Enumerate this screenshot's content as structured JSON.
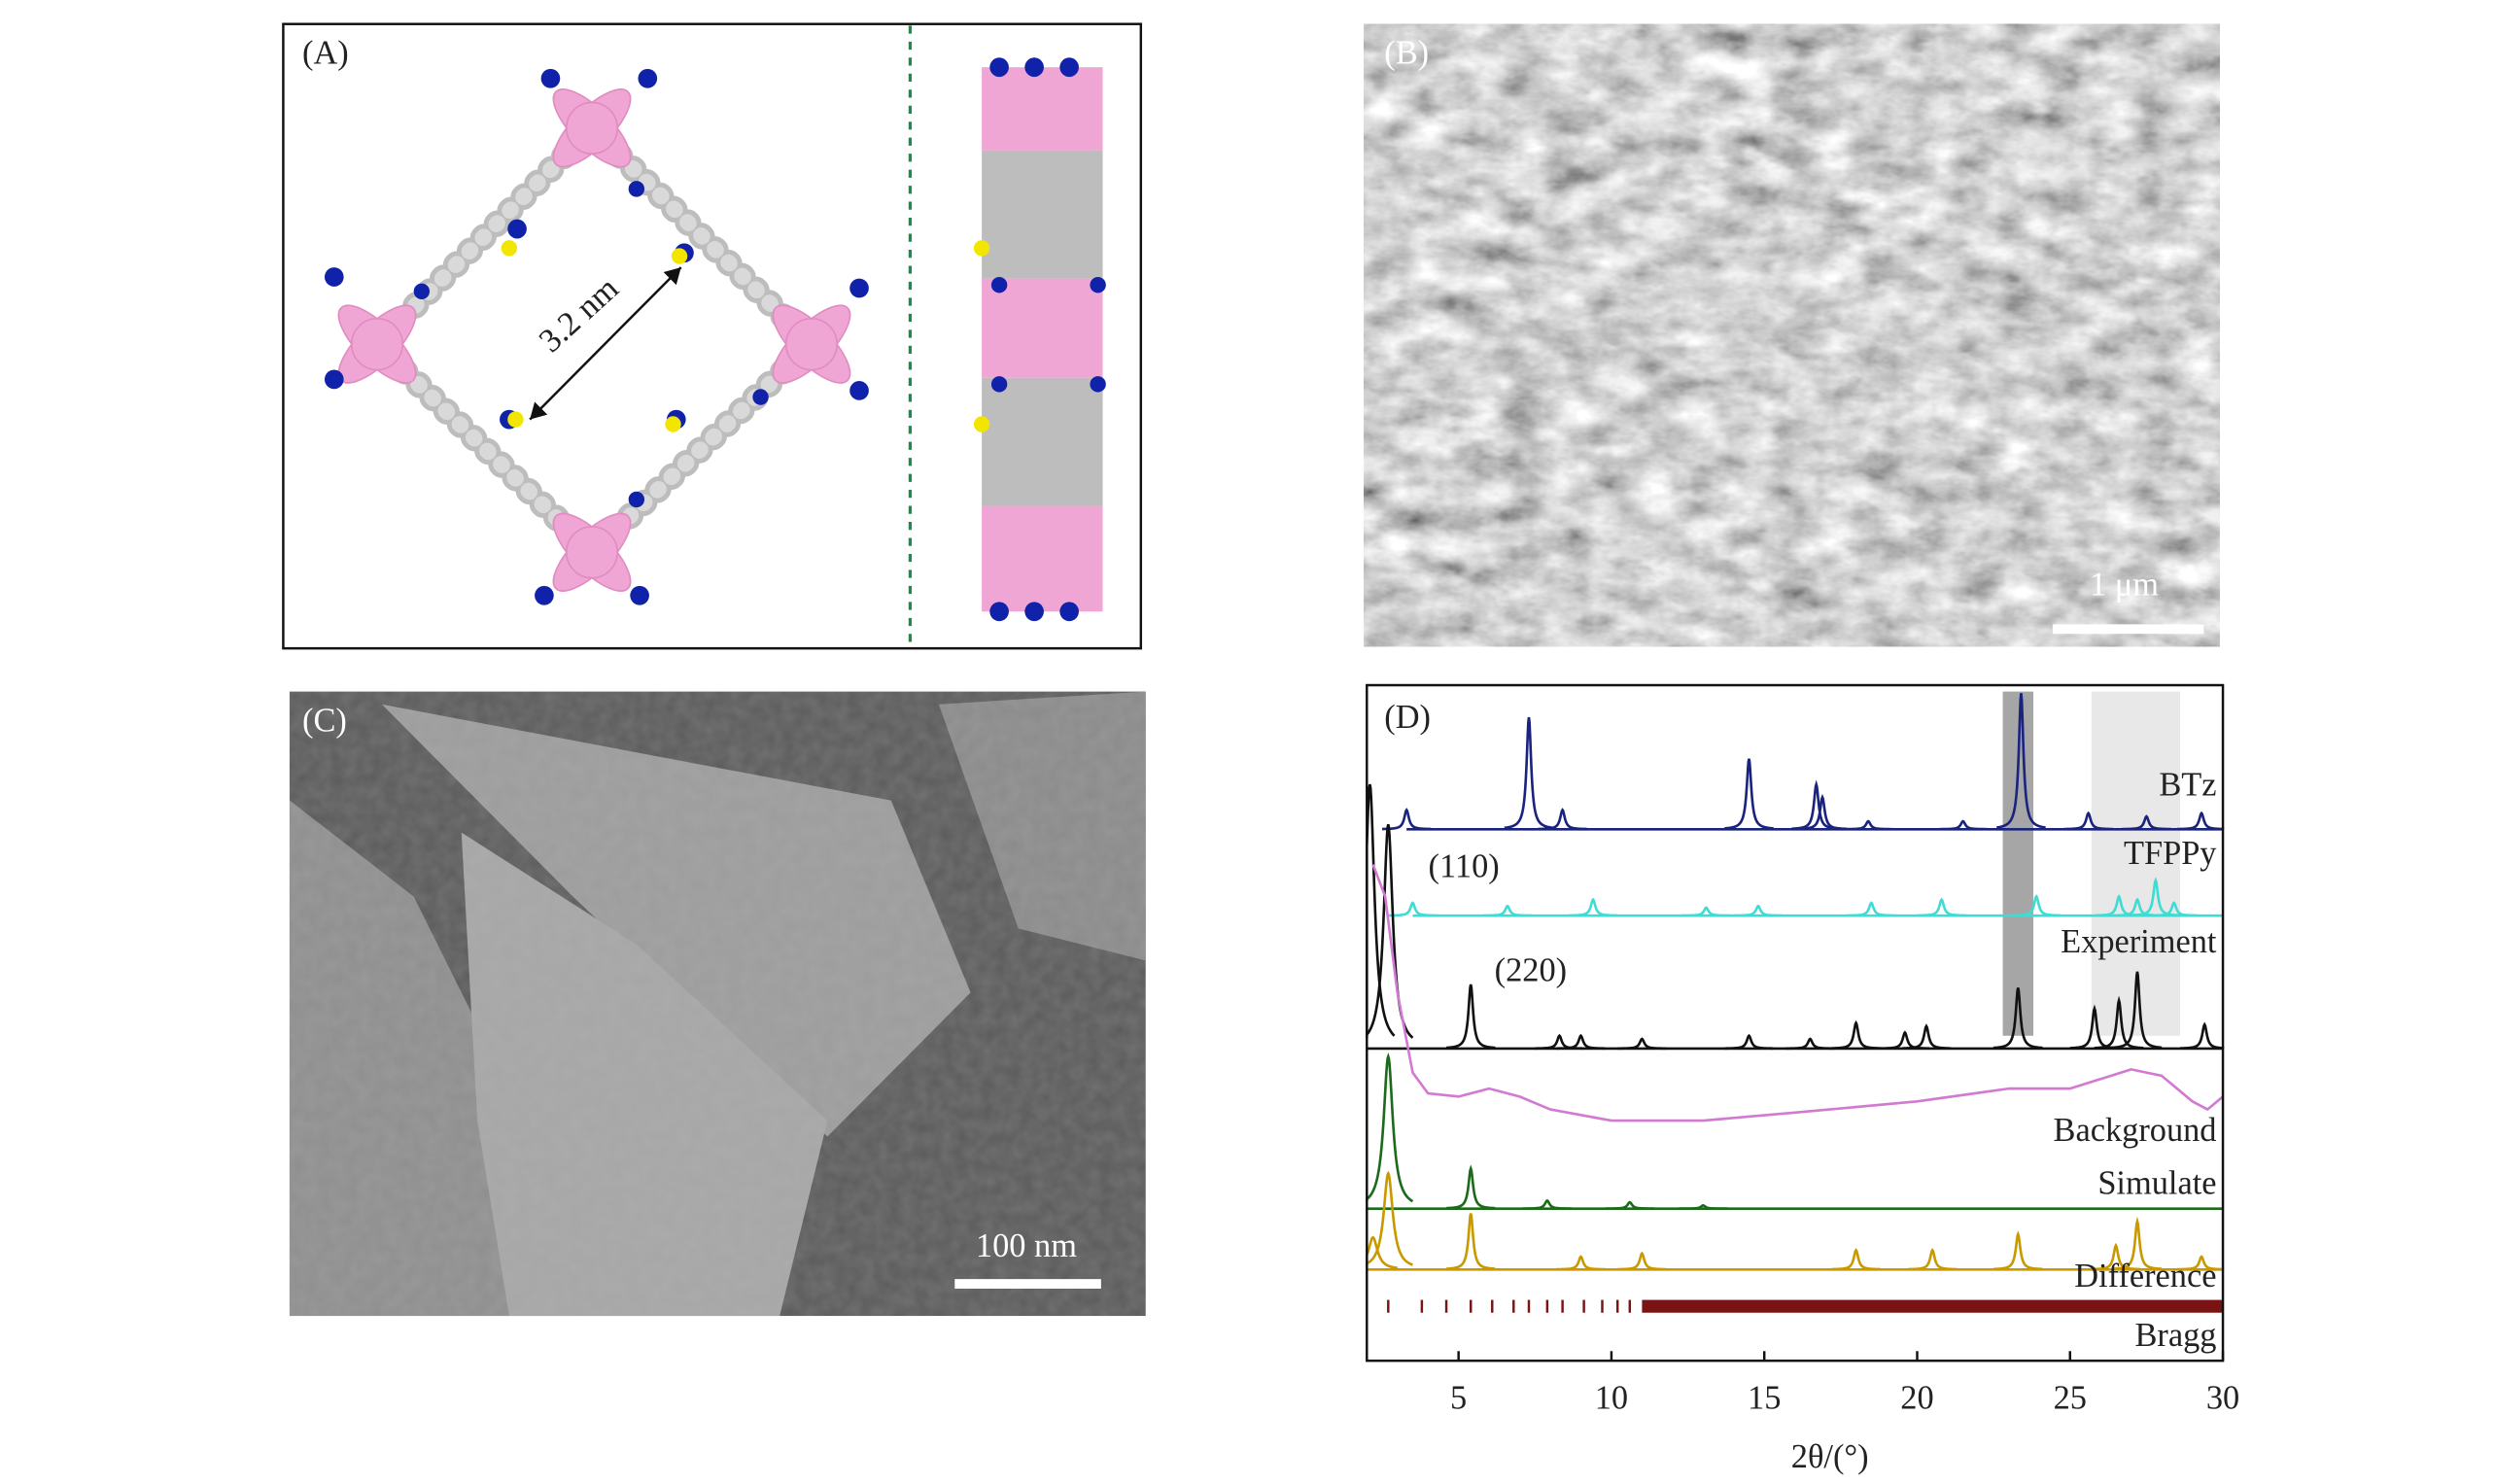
{
  "panels": {
    "a": {
      "label": "(A)",
      "distance": "3.2 nm"
    },
    "b": {
      "label": "(B)",
      "scale_bar": "1 μm"
    },
    "c": {
      "label": "(C)",
      "scale_bar": "100 nm"
    }
  },
  "chart_data": {
    "type": "xrd",
    "label": "(D)",
    "x_label": "2θ/(°)",
    "xlim": [
      2,
      30
    ],
    "xticks": [
      5,
      10,
      15,
      20,
      25,
      30
    ],
    "highlight_ranges": [
      {
        "range": [
          22.8,
          23.8
        ],
        "color": "#a6a6a6"
      },
      {
        "range": [
          25.7,
          28.6
        ],
        "color": "#e8e8e8"
      }
    ],
    "annotations": [
      "(110)",
      "(220)"
    ],
    "series": [
      {
        "name": "BTz",
        "style": "peaks",
        "color": "#1a237e",
        "x_start": 3.3,
        "x": [
          3.3,
          7.3,
          8.4,
          14.5,
          16.7,
          16.9,
          18.4,
          21.5,
          23.4,
          25.6,
          27.5,
          29.3
        ],
        "values": [
          12,
          70,
          12,
          44,
          28,
          20,
          5,
          5,
          85,
          10,
          8,
          10
        ]
      },
      {
        "name": "TFPPy",
        "style": "peaks",
        "color": "#3fdcd4",
        "x_start": 3.5,
        "x": [
          3.5,
          6.6,
          9.4,
          13.1,
          14.8,
          18.5,
          20.8,
          23.9,
          26.6,
          27.2,
          27.8,
          28.4
        ],
        "values": [
          8,
          6,
          10,
          5,
          6,
          8,
          10,
          12,
          12,
          10,
          22,
          8
        ]
      },
      {
        "name": "Experiment",
        "style": "peaks",
        "color": "#111111",
        "x_start": 2,
        "x": [
          2.1,
          2.7,
          5.4,
          8.3,
          9.0,
          11.0,
          14.5,
          16.5,
          18.0,
          19.6,
          20.3,
          23.3,
          25.8,
          26.6,
          27.2,
          29.4
        ],
        "values": [
          165,
          140,
          40,
          8,
          8,
          6,
          8,
          6,
          16,
          10,
          14,
          38,
          25,
          30,
          48,
          15
        ]
      },
      {
        "name": "Background",
        "style": "curve",
        "color": "#d27ad2",
        "x": [
          2.2,
          2.6,
          3,
          3.5,
          4,
          5,
          6,
          7,
          8,
          10,
          13,
          16,
          20,
          23,
          25,
          27,
          28,
          29,
          29.5,
          30
        ],
        "values": [
          165,
          145,
          85,
          35,
          22,
          20,
          25,
          20,
          12,
          5,
          5,
          10,
          17,
          25,
          25,
          37,
          33,
          17,
          12,
          20
        ]
      },
      {
        "name": "Simulate",
        "style": "peaks",
        "color": "#1b6b1b",
        "x_start": 2,
        "x": [
          2.7,
          5.4,
          7.9,
          10.6,
          13.0
        ],
        "values": [
          95,
          25,
          5,
          4,
          2
        ]
      },
      {
        "name": "Difference",
        "style": "peaks",
        "color": "#c89a00",
        "x_start": 2,
        "x": [
          2.2,
          2.7,
          5.4,
          9.0,
          11.0,
          18.0,
          20.5,
          23.3,
          26.5,
          27.2,
          29.3
        ],
        "values": [
          20,
          60,
          35,
          8,
          10,
          12,
          12,
          22,
          15,
          30,
          8
        ]
      },
      {
        "name": "Bragg",
        "style": "ticks",
        "color": "#7a1414",
        "x": [
          2.7,
          3.8,
          4.6,
          5.4,
          6.1,
          6.8,
          7.3,
          7.9,
          8.4,
          9.1,
          9.7,
          10.2,
          10.6
        ],
        "dense_range": [
          11,
          30
        ]
      }
    ]
  }
}
